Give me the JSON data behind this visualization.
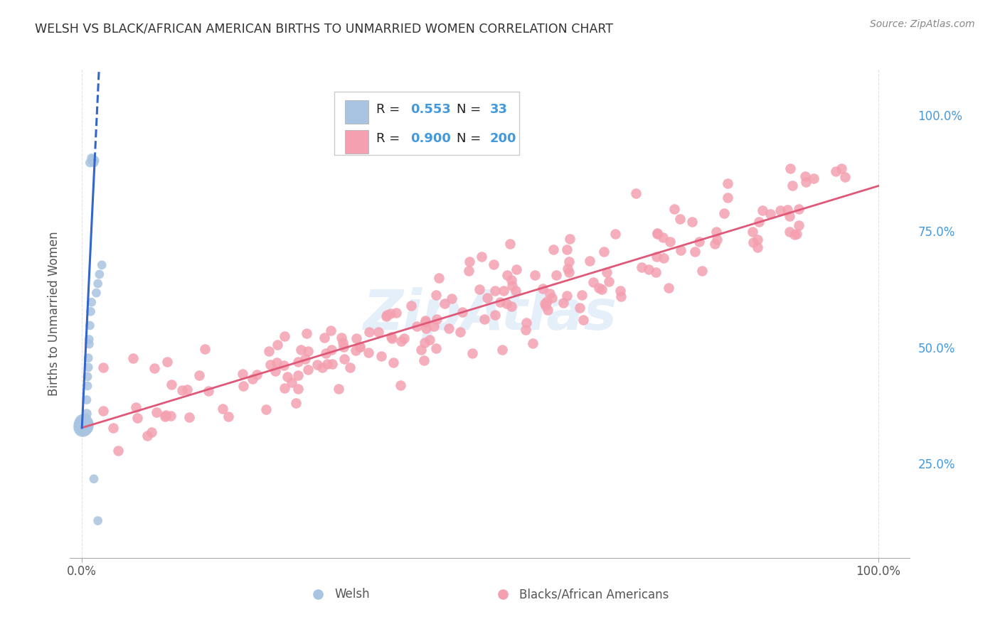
{
  "title": "WELSH VS BLACK/AFRICAN AMERICAN BIRTHS TO UNMARRIED WOMEN CORRELATION CHART",
  "source": "Source: ZipAtlas.com",
  "ylabel": "Births to Unmarried Women",
  "y_ticks_right": [
    "25.0%",
    "50.0%",
    "75.0%",
    "100.0%"
  ],
  "y_ticks_right_vals": [
    0.25,
    0.5,
    0.75,
    1.0
  ],
  "legend_R_welsh": "0.553",
  "legend_N_welsh": "33",
  "legend_R_black": "0.900",
  "legend_N_black": "200",
  "welsh_color": "#a8c4e0",
  "black_color": "#f4a0b0",
  "welsh_line_color": "#3366cc",
  "black_line_color": "#e05878",
  "watermark": "ZipAtlas",
  "background_color": "#ffffff",
  "title_color": "#333333",
  "source_color": "#888888",
  "right_label_color": "#4499dd",
  "bottom_label_color": "#555555"
}
